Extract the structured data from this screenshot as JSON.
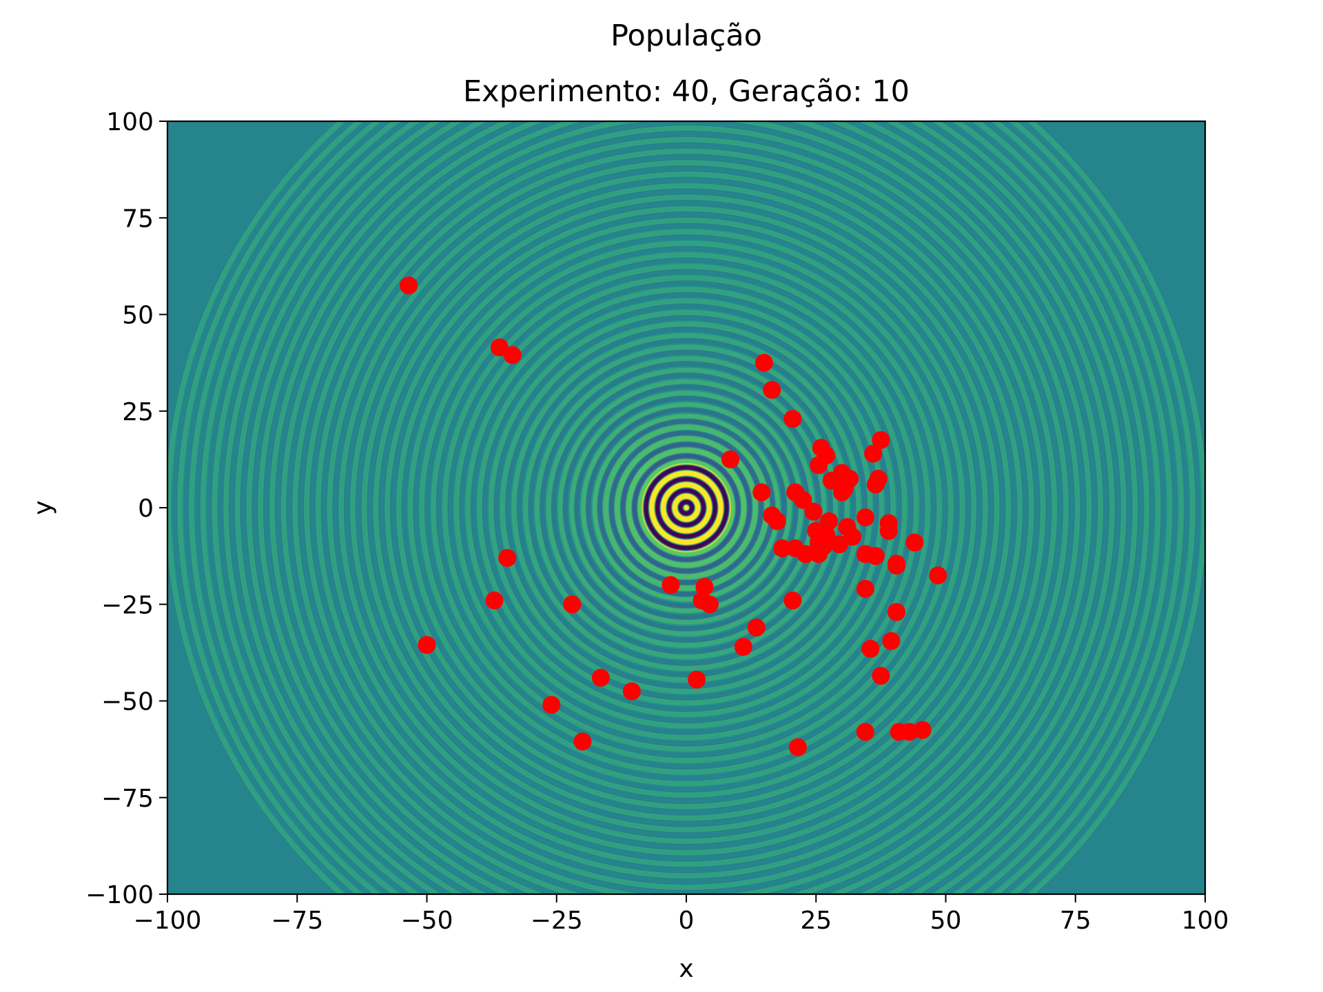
{
  "chart_data": {
    "type": "scatter",
    "suptitle": "População",
    "title": "Experimento: 40, Geração: 10",
    "xlabel": "x",
    "ylabel": "y",
    "xlim": [
      -100,
      100
    ],
    "ylim": [
      -100,
      100
    ],
    "xticks": [
      -100,
      -75,
      -50,
      -25,
      0,
      25,
      50,
      75,
      100
    ],
    "yticks": [
      -100,
      -75,
      -50,
      -25,
      0,
      25,
      50,
      75,
      100
    ],
    "xtick_labels": [
      "−100",
      "−75",
      "−50",
      "−25",
      "0",
      "25",
      "50",
      "75",
      "100"
    ],
    "ytick_labels": [
      "−100",
      "−75",
      "−50",
      "−25",
      "0",
      "25",
      "50",
      "75",
      "100"
    ],
    "grid": false,
    "background": {
      "type": "heatmap",
      "description_colormap": "viridis",
      "pattern": "concentric-rings",
      "center": [
        0,
        0
      ],
      "base_color": "#21918c",
      "ring_colors": [
        "#fde725",
        "#440154",
        "#3b528b",
        "#5ec962"
      ]
    },
    "marker_color": "#ff0000",
    "points": [
      [
        -53.5,
        57.5
      ],
      [
        -36,
        41.5
      ],
      [
        -33.5,
        39.5
      ],
      [
        -34.5,
        -13
      ],
      [
        -37,
        -24
      ],
      [
        -50,
        -35.5
      ],
      [
        -22,
        -25
      ],
      [
        -26,
        -51
      ],
      [
        -16.5,
        -44
      ],
      [
        -10.5,
        -47.5
      ],
      [
        -20,
        -60.5
      ],
      [
        -3,
        -20
      ],
      [
        3.5,
        -20.5
      ],
      [
        3,
        -24
      ],
      [
        4.5,
        -25
      ],
      [
        2,
        -44.5
      ],
      [
        8.5,
        12.5
      ],
      [
        15,
        37.5
      ],
      [
        16.5,
        30.5
      ],
      [
        14.5,
        4
      ],
      [
        16.5,
        -2
      ],
      [
        17.5,
        -3.5
      ],
      [
        18.5,
        -10.5
      ],
      [
        13.5,
        -31
      ],
      [
        11,
        -36
      ],
      [
        20.5,
        23
      ],
      [
        21,
        4
      ],
      [
        22.5,
        2
      ],
      [
        21,
        -10.5
      ],
      [
        20.5,
        -24
      ],
      [
        23,
        -12
      ],
      [
        24.5,
        -1
      ],
      [
        25,
        -6
      ],
      [
        25.5,
        -9
      ],
      [
        25.5,
        -12
      ],
      [
        21.5,
        -62
      ],
      [
        26,
        15.5
      ],
      [
        27,
        13.5
      ],
      [
        25.5,
        11
      ],
      [
        28,
        7
      ],
      [
        27.5,
        -3.5
      ],
      [
        27,
        -7
      ],
      [
        26.5,
        -10
      ],
      [
        30,
        9
      ],
      [
        31.5,
        7.5
      ],
      [
        30,
        4
      ],
      [
        30.5,
        5
      ],
      [
        31,
        -5
      ],
      [
        29.5,
        -9.5
      ],
      [
        32,
        -7.5
      ],
      [
        34.5,
        -2.5
      ],
      [
        34.5,
        -12
      ],
      [
        36,
        14
      ],
      [
        37.5,
        17.5
      ],
      [
        36.5,
        6
      ],
      [
        37,
        7.5
      ],
      [
        36.5,
        -12.5
      ],
      [
        39,
        -4
      ],
      [
        39,
        -6
      ],
      [
        44,
        -9
      ],
      [
        40.5,
        -15
      ],
      [
        40.5,
        -14.5
      ],
      [
        48.5,
        -17.5
      ],
      [
        34.5,
        -21
      ],
      [
        40.5,
        -27
      ],
      [
        35.5,
        -36.5
      ],
      [
        39.5,
        -34.5
      ],
      [
        37.5,
        -43.5
      ],
      [
        34.5,
        -58
      ],
      [
        41,
        -58
      ],
      [
        43,
        -58
      ],
      [
        45.5,
        -57.5
      ]
    ]
  }
}
